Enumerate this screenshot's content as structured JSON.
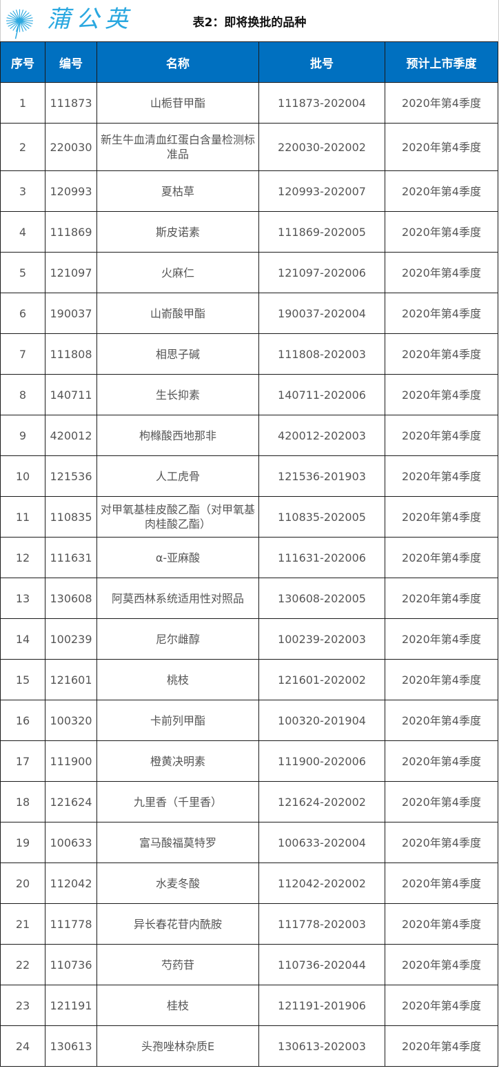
{
  "title": "表2：即将换批的品种",
  "colors": {
    "header_bg": "#0070c0",
    "header_text": "#ffffff",
    "watermark": "#2aa8e0"
  },
  "watermark": {
    "text": "蒲公英",
    "icon": "dandelion-icon"
  },
  "columns": [
    "序号",
    "编号",
    "名称",
    "批号",
    "预计上市季度"
  ],
  "rows": [
    [
      "1",
      "111873",
      "山栀苷甲酯",
      "111873-202004",
      "2020年第4季度"
    ],
    [
      "2",
      "220030",
      "新生牛血清血红蛋白含量检测标准品",
      "220030-202002",
      "2020年第4季度"
    ],
    [
      "3",
      "120993",
      "夏枯草",
      "120993-202007",
      "2020年第4季度"
    ],
    [
      "4",
      "111869",
      "斯皮诺素",
      "111869-202005",
      "2020年第4季度"
    ],
    [
      "5",
      "121097",
      "火麻仁",
      "121097-202006",
      "2020年第4季度"
    ],
    [
      "6",
      "190037",
      "山嵛酸甲酯",
      "190037-202004",
      "2020年第4季度"
    ],
    [
      "7",
      "111808",
      "相思子碱",
      "111808-202003",
      "2020年第4季度"
    ],
    [
      "8",
      "140711",
      "生长抑素",
      "140711-202006",
      "2020年第4季度"
    ],
    [
      "9",
      "420012",
      "枸橼酸西地那非",
      "420012-202003",
      "2020年第4季度"
    ],
    [
      "10",
      "121536",
      "人工虎骨",
      "121536-201903",
      "2020年第4季度"
    ],
    [
      "11",
      "110835",
      "对甲氧基桂皮酸乙酯（对甲氧基肉桂酸乙酯）",
      "110835-202005",
      "2020年第4季度"
    ],
    [
      "12",
      "111631",
      "α-亚麻酸",
      "111631-202006",
      "2020年第4季度"
    ],
    [
      "13",
      "130608",
      "阿莫西林系统适用性对照品",
      "130608-202005",
      "2020年第4季度"
    ],
    [
      "14",
      "100239",
      "尼尔雌醇",
      "100239-202003",
      "2020年第4季度"
    ],
    [
      "15",
      "121601",
      "桃枝",
      "121601-202002",
      "2020年第4季度"
    ],
    [
      "16",
      "100320",
      "卡前列甲酯",
      "100320-201904",
      "2020年第4季度"
    ],
    [
      "17",
      "111900",
      "橙黄决明素",
      "111900-202006",
      "2020年第4季度"
    ],
    [
      "18",
      "121624",
      "九里香（千里香）",
      "121624-202002",
      "2020年第4季度"
    ],
    [
      "19",
      "100633",
      "富马酸福莫特罗",
      "100633-202004",
      "2020年第4季度"
    ],
    [
      "20",
      "112042",
      "水麦冬酸",
      "112042-202002",
      "2020年第4季度"
    ],
    [
      "21",
      "111778",
      "异长春花苷内酰胺",
      "111778-202003",
      "2020年第4季度"
    ],
    [
      "22",
      "110736",
      "芍药苷",
      "110736-202044",
      "2020年第4季度"
    ],
    [
      "23",
      "121191",
      "桂枝",
      "121191-201906",
      "2020年第4季度"
    ],
    [
      "24",
      "130613",
      "头孢唑林杂质E",
      "130613-202003",
      "2020年第4季度"
    ]
  ]
}
